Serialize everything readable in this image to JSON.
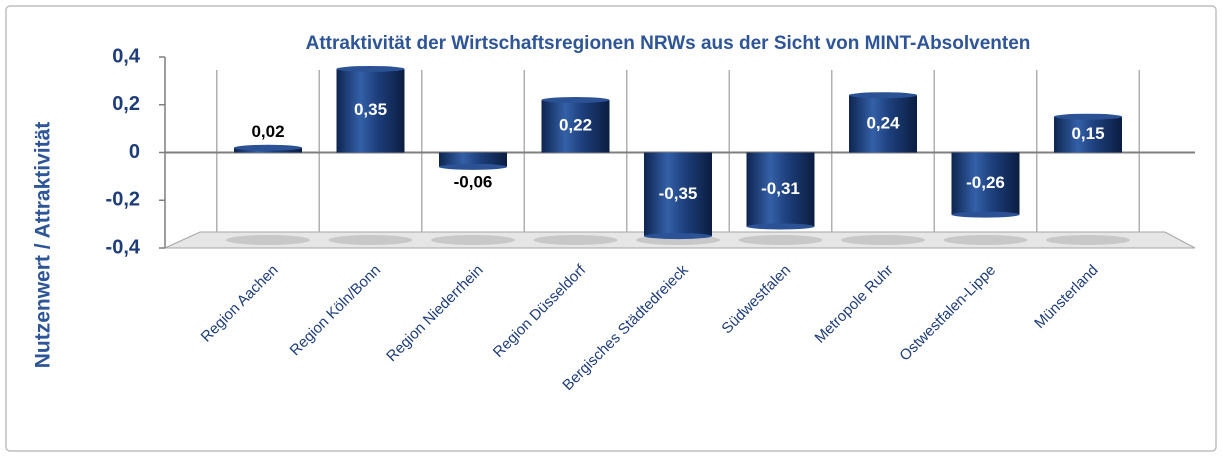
{
  "chart_data": {
    "type": "bar",
    "title": "Attraktivität der Wirtschaftsregionen NRWs aus der Sicht von MINT-Absolventen",
    "y_label": "Nutzenwert / Attraktivität",
    "categories": [
      "Region Aachen",
      "Region Köln/Bonn",
      "Region Niederrhein",
      "Region Düsseldorf",
      "Bergisches Städtedreieck",
      "Südwestfalen",
      "Metropole Ruhr",
      "Ostwestfalen-Lippe",
      "Münsterland"
    ],
    "values": [
      0.02,
      0.35,
      -0.06,
      0.22,
      -0.35,
      -0.31,
      0.24,
      -0.26,
      0.15
    ],
    "value_labels": [
      "0,02",
      "0,35",
      "-0,06",
      "0,22",
      "-0,35",
      "-0,31",
      "0,24",
      "-0,26",
      "0,15"
    ],
    "color": "#1d3f7c",
    "ylim": [
      -0.4,
      0.4
    ],
    "yticks": [
      {
        "value": 0.4,
        "label": "0,4"
      },
      {
        "value": 0.2,
        "label": "0,2"
      },
      0,
      {
        "value": -0.2,
        "label": "-0,2"
      },
      {
        "value": -0.4,
        "label": "-0,4"
      }
    ]
  }
}
